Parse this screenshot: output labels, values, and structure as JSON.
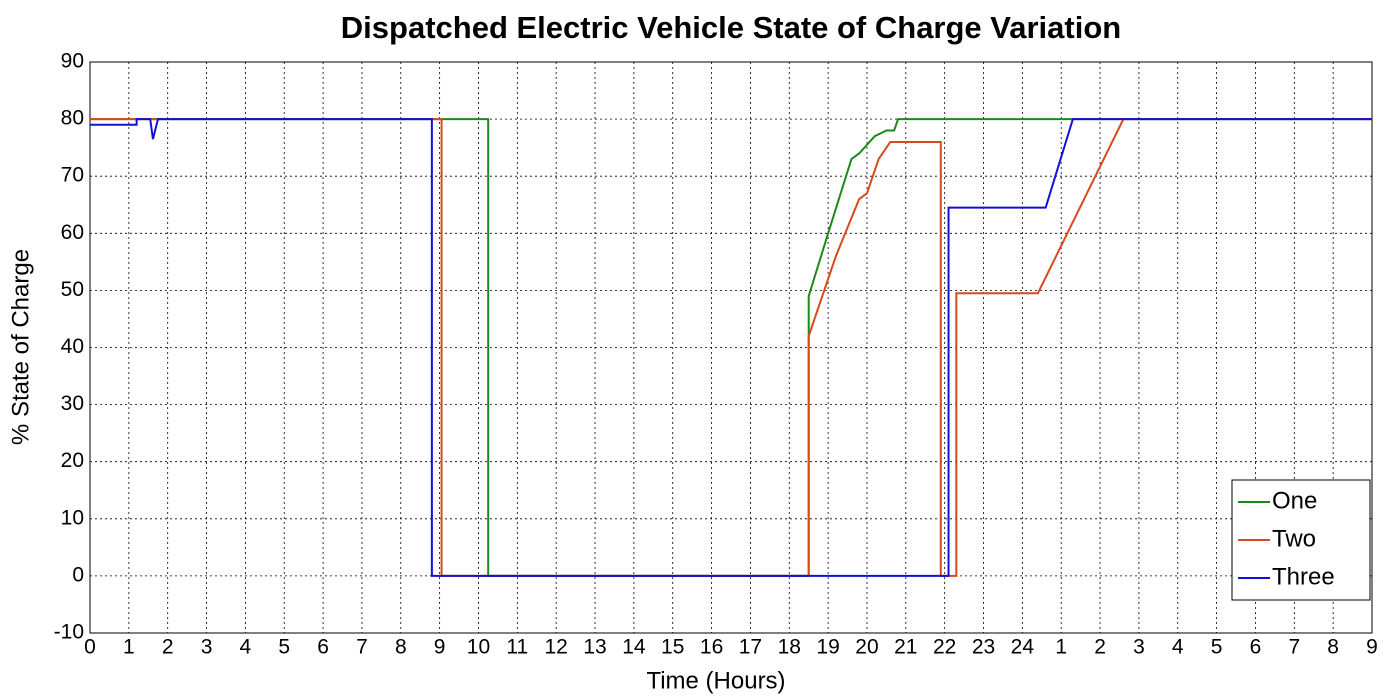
{
  "chart_data": {
    "type": "line",
    "title": "Dispatched Electric Vehicle State of Charge Variation",
    "x_label": "Time (Hours)",
    "y_label": "% State of Charge",
    "xlim": [
      0,
      33
    ],
    "ylim": [
      -10,
      90
    ],
    "xticks": [
      0,
      1,
      2,
      3,
      4,
      5,
      6,
      7,
      8,
      9,
      10,
      11,
      12,
      13,
      14,
      15,
      16,
      17,
      18,
      19,
      20,
      21,
      22,
      23,
      24,
      {
        "value": 25,
        "label": "1"
      },
      {
        "value": 26,
        "label": "2"
      },
      {
        "value": 27,
        "label": "3"
      },
      {
        "value": 28,
        "label": "4"
      },
      {
        "value": 29,
        "label": "5"
      },
      {
        "value": 30,
        "label": "6"
      },
      {
        "value": 31,
        "label": "7"
      },
      {
        "value": 32,
        "label": "8"
      },
      {
        "value": 33,
        "label": "9"
      }
    ],
    "yticks": [
      -10,
      0,
      10,
      20,
      30,
      40,
      50,
      60,
      70,
      80,
      90
    ],
    "grid": true,
    "legend": "lower right",
    "series": [
      {
        "name": "One",
        "color": "#1a8a1a",
        "x": [
          0,
          10.25,
          10.25,
          18.5,
          18.5,
          19.0,
          19.6,
          19.8,
          20.2,
          20.5,
          20.7,
          20.8,
          33
        ],
        "values": [
          80,
          80,
          0,
          0,
          49,
          60,
          73,
          74,
          77,
          78,
          78,
          80,
          80
        ]
      },
      {
        "name": "Two",
        "color": "#d84a1b",
        "x": [
          0,
          9.05,
          9.05,
          18.5,
          18.5,
          19.2,
          19.8,
          20.0,
          20.3,
          20.6,
          21.9,
          21.9,
          22.3,
          22.3,
          24.4,
          26.6,
          33
        ],
        "values": [
          80,
          80,
          0,
          0,
          42,
          56,
          66,
          67,
          73,
          76,
          76,
          0,
          0,
          49.5,
          49.5,
          80,
          80
        ]
      },
      {
        "name": "Three",
        "color": "#1010d8",
        "x": [
          0,
          1.2,
          1.2,
          1.55,
          1.62,
          1.75,
          8.8,
          8.8,
          22.1,
          22.1,
          24.6,
          25.3,
          33
        ],
        "values": [
          79,
          79,
          80,
          80,
          76.5,
          80,
          80,
          0,
          0,
          64.5,
          64.5,
          80,
          80
        ]
      }
    ]
  }
}
